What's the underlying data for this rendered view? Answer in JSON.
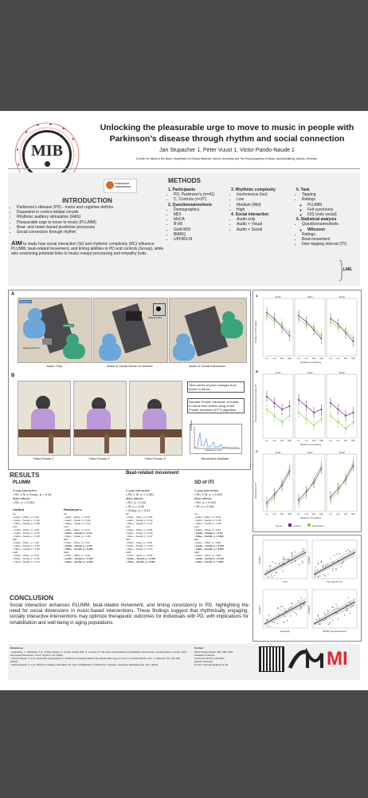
{
  "header": {
    "logo_text": "MIB",
    "logo_ring_text": "DANISH NATIONAL RESEARCH FOUNDATION · CENTER FOR MUSIC IN THE BRAIN",
    "title_line1": "Unlocking the pleasurable urge to move to music in people with",
    "title_line2": "Parkinson’s disease through rhythm and social connection",
    "authors": "Jan Stupacher 1, Peter Vuust 1, Victor Pando-Naude 1",
    "affiliation": "1Center for Music in the Brain, Department of Clinical Medicine, Aarhus University and The Royal Academy of Music, Aarhus/Aalborg, Aarhus, Denmark"
  },
  "intro": {
    "heading": "INTRODUCTION",
    "bullets": [
      "Parkinson’s disease (PD) - motor and cognitive deficits",
      "Dopamine in cortico-striatal circuits",
      "Rhythmic auditory stimulation (RAS)",
      "Pleasurable urge to move to music (PLUMM)",
      "Beat- and meter-based predictive processes",
      "Social connection through rhythm"
    ],
    "aim_label": "AIM",
    "aim_text": "to study how social interaction (SI) and rhythmic complexity (RC) influence PLUMM, beat-related movement, and timing abilities in PD and controls (Group), while also examining potential links to music reward processing and empathy traits"
  },
  "methods": {
    "heading": "METHODS",
    "logo_label": "PARKINSON FORENINGEN",
    "col1": [
      {
        "title": "1. Participants",
        "items": [
          "PD, Parkinson’s (n=41)",
          "C, Controls (n=37)"
        ]
      },
      {
        "title": "2. Questionnaires/tests",
        "items": [
          "Demographics",
          "MDI",
          "MoCA",
          "B-IRI",
          "Gold-MSI",
          "BMRQ",
          "UPDRS-III"
        ]
      }
    ],
    "col2": [
      {
        "title": "3. Rhythmic complexity",
        "items": [
          "Isochronous (Iso)",
          "Low",
          "Medium (Mid)",
          "High"
        ]
      },
      {
        "title": "4. Social interaction",
        "items": [
          "Audio only",
          "Audio + Visual",
          "Audio + Social"
        ]
      }
    ],
    "col3": [
      {
        "title": "5. Task",
        "items": [
          "Tapping",
          "Ratings"
        ],
        "subitems": [
          "PLUMM",
          "Felt synchrony",
          "IOS (only social)"
        ]
      },
      {
        "title": "6. Statistical analysis",
        "items": [
          "Questionnaires/tests",
          "Ratings",
          "Beat-movement",
          "Inter-tapping interval (ITI)"
        ],
        "sub": "Wilcoxon",
        "lme": "LME"
      }
    ]
  },
  "figA": {
    "label": "A",
    "tags": [
      "Participant",
      "Assistant",
      "Tapping Device",
      "Laptop",
      "Flashing Dot"
    ],
    "captions": [
      "Audio Only",
      "Audio & Visual Guide on Monitor",
      "Audio & Social Interaction"
    ]
  },
  "figB": {
    "label": "B",
    "note1": "Time-series of pixel changes from frame to frame",
    "note2": "Discrete Fourier transform of frame-to-frame time series using a fast Fourier transform (FFT) algorithm",
    "axis": "Frequency in Hz",
    "axis_y": "Amplitude",
    "captions": [
      "Video Frame 1",
      "Video Frame 2",
      "Video Frame 3",
      "Movement Analysis"
    ]
  },
  "figC": {
    "panel_labels": [
      "A",
      "B",
      "C"
    ],
    "cond_labels": [
      "Audio",
      "Video",
      "Social"
    ],
    "ylabels": [
      "Predicted PLUMM Ratings",
      "Predicted Beat-related Movement (Amp. Diff)",
      "Predicted SD of ITI"
    ],
    "xlabel": "Rhythmic Complexity",
    "ticks": [
      "Iso",
      "Low",
      "Mid",
      "High"
    ],
    "legend_group": "Group",
    "legend_items": [
      "Control",
      "Parkinson's"
    ],
    "colors": {
      "control": "#6b2d82",
      "parkinson": "#8fcf5a"
    }
  },
  "figD": {
    "xlabels": [
      "IOS",
      "Felt Synchrony",
      "Empathy",
      "BMRQ Social Reward"
    ],
    "ylabel": "PLUMM"
  },
  "results": {
    "heading": "RESULTS",
    "col1": {
      "title": "PLUMM",
      "interaction_label": "3-way interaction",
      "interaction": "RC x SI x Group: p = 0.04",
      "main_label": "Main effects",
      "main": "RC: p < 0.001",
      "sub1": "Control",
      "sub2": "Parkinson's",
      "lines": [
        "Iso",
        "Audio – Video: p = 0.91",
        "Audio – Social: p = 0.32",
        "Video – Social: p = 0.08",
        "Low",
        "Audio – Video: p = 0.95",
        "Audio – Social: p = 1.00",
        "Video – Social: p = 1.00",
        "Mid",
        "Audio – Video: p = 1.00",
        "Audio – Social: p = 1.00",
        "Video – Social: p = 1.00",
        "High",
        "Audio – Video: p = 0.97",
        "Audio – Social: p = 0.39",
        "Video – Social: p = 0.76"
      ],
      "lines2": [
        "Iso",
        "Audio – Video: p = 0.64",
        "Audio – Social: p = 0.90",
        "Video – Social: p = 0.24",
        "Low",
        "Audio – Video: p = 0.14",
        "Audio – Social: p = 0.04",
        "Video – Social: p = 1.00",
        "Mid",
        "Audio – Video: p = 0.61",
        "Audio – Social: p = 0.02",
        "Video – Social: p < 0.001",
        "High",
        "Audio – Video: p = 1.00",
        "Audio – Social: p < 0.001",
        "Video – Social: p < 0.001"
      ]
    },
    "col2": {
      "title": "Beat-related movement",
      "interaction_label": "2-way interaction",
      "interaction": "RC x SI: p < 0.001",
      "main_label": "Main effects",
      "main": [
        "RC: p = 0.02",
        "SI: p = 0.03",
        "Group: p = 0.01"
      ],
      "lines": [
        "Iso",
        "Audio – Video: p = 0.99",
        "Audio – Social: p = 0.12",
        "Video – Social: p = 0.17",
        "Low",
        "Audio – Video: p = 0.83",
        "Audio – Social: p = 0.99",
        "Video – Social: p = 0.47",
        "Mid",
        "Audio – Video: p = 0.09",
        "Audio – Social: p = 0.18",
        "Video – Social: p = 0.14",
        "High",
        "Audio – Video: p = 0.09",
        "Audio – Social: p < 0.001",
        "Video – Social: p < 0.001"
      ]
    },
    "col3": {
      "title": "SD of ITI",
      "interaction_label": "2-way interaction",
      "interaction": "RC x SI: p < 0.001",
      "main_label": "Main effects",
      "main": [
        "RC: p < 0.001",
        "SI: p < 0.001"
      ],
      "lines": [
        "Iso",
        "Audio – Video: p = 0.43",
        "Audio – Social: p = 0.65",
        "Video – Social: p = 0.96",
        "Low",
        "Audio – Video: p = 0.35",
        "Audio – Social: p = 0.04",
        "Video – Social: p < 0.001",
        "Mid",
        "Audio – Video: p = 0.86",
        "Audio – Social: p < 0.001",
        "Video – Social: p < 0.001",
        "High",
        "Audio – Video: p = 0.95",
        "Audio – Social: p < 0.001",
        "Video – Social: p < 0.001"
      ]
    }
  },
  "conclusion": {
    "heading": "CONCLUSION",
    "text": "Social interaction enhances PLUMM, beat-related movement, and timing consistency in PD, highlighting the need for social dimensions in music-based interventions. These findings suggest that rhythmically engaging, socially interactive interventions may optimize therapeutic outcomes for individuals with PD, with implications for rehabilitation and well-being in aging populations."
  },
  "footer": {
    "references_title": "References",
    "references": [
      "Stupacher, J., Matthews, T. E., Pando-Naude, V., Foster Vander Elst, O. & Vuust, P. The sweet spot between predictability and surprise: musical groove in brain, body and social interactions. Front. Psychol. 13, (2022).",
      "Pando-Naude, V. et al. Dopamine dysregulation in Parkinson's disease flattens the pleasurable urge to move to musical rhythms. Eur. J. Neurosci. 59, 101–118 (2024).",
      "Pando-Naude, V. et al. Rhythmic auditory stimulation for motor rehabilitation in Parkinson's disease. Cochrane Database Syst. Rev. (2024)."
    ],
    "contact_title": "Contact",
    "contact": [
      "Victor Pando-Naude, MD, MSc, PhD",
      "Assistant Professor",
      "Center for Music in the Brain",
      "Aarhus University",
      "E-mail: victor.pando@clin.au.dk"
    ],
    "logos": [
      "AU",
      "MI"
    ]
  }
}
